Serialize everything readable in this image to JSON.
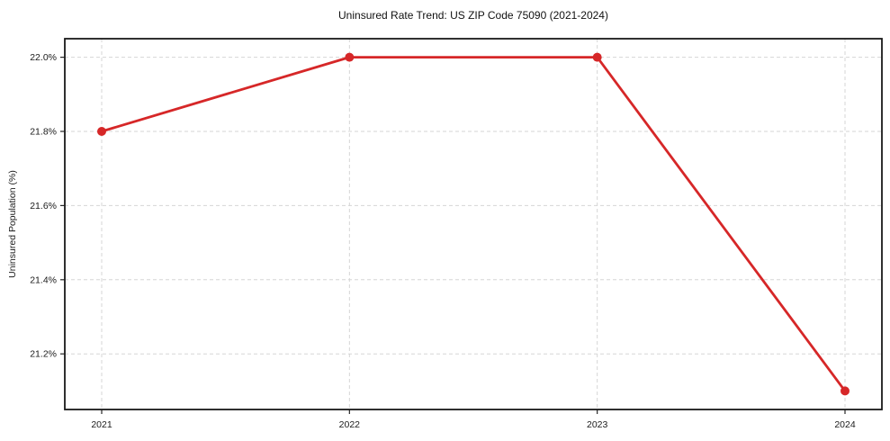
{
  "chart_data": {
    "type": "line",
    "title": "Uninsured Rate Trend: US ZIP Code 75090 (2021-2024)",
    "xlabel": "",
    "ylabel": "Uninsured Population (%)",
    "x": [
      2021,
      2022,
      2023,
      2024
    ],
    "x_tick_labels": [
      "2021",
      "2022",
      "2023",
      "2024"
    ],
    "series": [
      {
        "name": "Uninsured Rate",
        "values": [
          21.8,
          22.0,
          22.0,
          21.1
        ],
        "color": "#d62728",
        "marker": "circle"
      }
    ],
    "y_ticks": [
      21.2,
      21.4,
      21.6,
      21.8,
      22.0
    ],
    "y_tick_labels": [
      "21.2%",
      "21.4%",
      "21.6%",
      "21.8%",
      "22.0%"
    ],
    "ylim": [
      21.05,
      22.05
    ],
    "grid": "both",
    "grid_style": "dashed",
    "legend_position": "none"
  },
  "colors": {
    "line": "#d62728",
    "grid": "#d6d6d6",
    "axis": "#1a1a1a",
    "text": "#1a1a1a",
    "background": "#ffffff"
  }
}
